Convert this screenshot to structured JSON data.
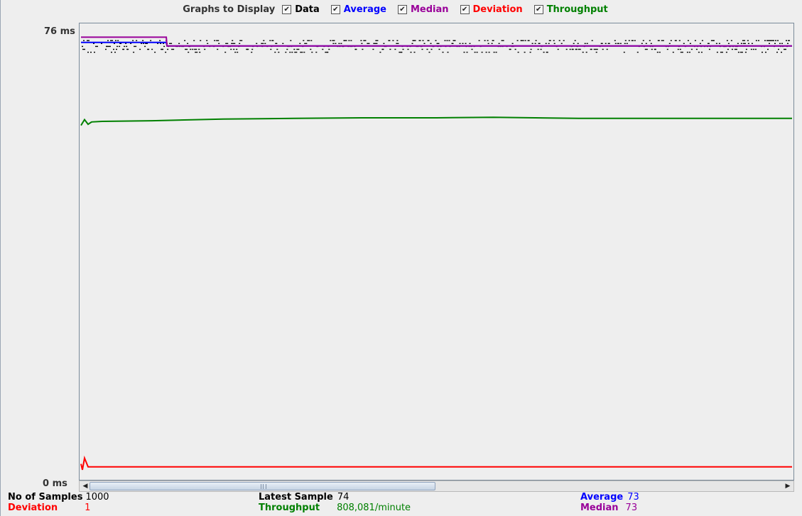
{
  "legend": {
    "title": "Graphs to Display",
    "items": [
      {
        "label": "Data",
        "color": "#000000",
        "checked": true
      },
      {
        "label": "Average",
        "color": "#0000ff",
        "checked": true
      },
      {
        "label": "Median",
        "color": "#990099",
        "checked": true
      },
      {
        "label": "Deviation",
        "color": "#ff0000",
        "checked": true
      },
      {
        "label": "Throughput",
        "color": "#008000",
        "checked": true
      }
    ]
  },
  "axis": {
    "y_max_label": "76  ms",
    "y_min_label": "0  ms"
  },
  "stats": {
    "samples_label": "No of Samples",
    "samples_value": "1000",
    "deviation_label": "Deviation",
    "deviation_value": "1",
    "latest_label": "Latest Sample",
    "latest_value": "74",
    "throughput_label": "Throughput",
    "throughput_value": "808,081/minute",
    "average_label": "Average",
    "average_value": "73",
    "median_label": "Median",
    "median_value": "73"
  },
  "chart_data": {
    "type": "line",
    "title": "",
    "xlabel": "",
    "ylabel": "ms",
    "ylim": [
      0,
      76
    ],
    "samples": 1000,
    "legend_position": "top",
    "series": [
      {
        "name": "Data",
        "color": "#000000",
        "style": "points",
        "value_range": [
          72,
          74
        ]
      },
      {
        "name": "Average",
        "color": "#0000ff",
        "x": [
          0,
          120,
          121,
          1000
        ],
        "y": [
          73.6,
          73.6,
          73,
          73
        ]
      },
      {
        "name": "Median",
        "color": "#990099",
        "x": [
          0,
          120,
          121,
          1000
        ],
        "y": [
          74.5,
          74.5,
          73,
          73
        ]
      },
      {
        "name": "Deviation",
        "color": "#ff0000",
        "x": [
          0,
          2,
          5,
          10,
          1000
        ],
        "y": [
          1.5,
          0.5,
          2.5,
          1,
          1
        ]
      },
      {
        "name": "Throughput",
        "color": "#008000",
        "x": [
          0,
          5,
          10,
          15,
          30,
          100,
          200,
          300,
          400,
          500,
          580,
          700,
          800,
          900,
          1000
        ],
        "y": [
          59.4,
          60.4,
          59.6,
          60.0,
          60.1,
          60.2,
          60.5,
          60.6,
          60.7,
          60.7,
          60.8,
          60.6,
          60.6,
          60.6,
          60.6
        ]
      }
    ]
  }
}
